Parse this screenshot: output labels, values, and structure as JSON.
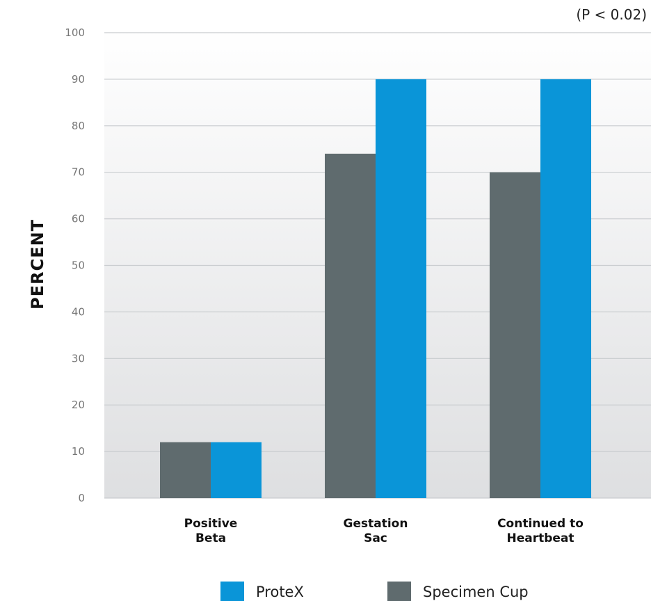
{
  "chart_data": {
    "type": "bar",
    "annotation": "(P < 0.02)",
    "ylabel": "PERCENT",
    "xlabel": "",
    "ylim": [
      0,
      100
    ],
    "yticks": [
      "0",
      "10",
      "20",
      "30",
      "40",
      "50",
      "60",
      "70",
      "80",
      "90",
      "100"
    ],
    "categories": [
      [
        "Positive",
        "Beta"
      ],
      [
        "Gestation",
        "Sac"
      ],
      [
        "Continued to",
        "Heartbeat"
      ]
    ],
    "series": [
      {
        "name": "Specimen Cup",
        "color": "#5f6b6e",
        "values": [
          12,
          74,
          70
        ]
      },
      {
        "name": "ProteX",
        "color": "#0a95d8",
        "values": [
          12,
          90,
          90
        ]
      }
    ],
    "legend": {
      "placement": "bottom",
      "order": [
        "ProteX",
        "Specimen Cup"
      ]
    },
    "grid": true,
    "background_gradient": [
      "#ffffff",
      "#dedfe1"
    ]
  }
}
